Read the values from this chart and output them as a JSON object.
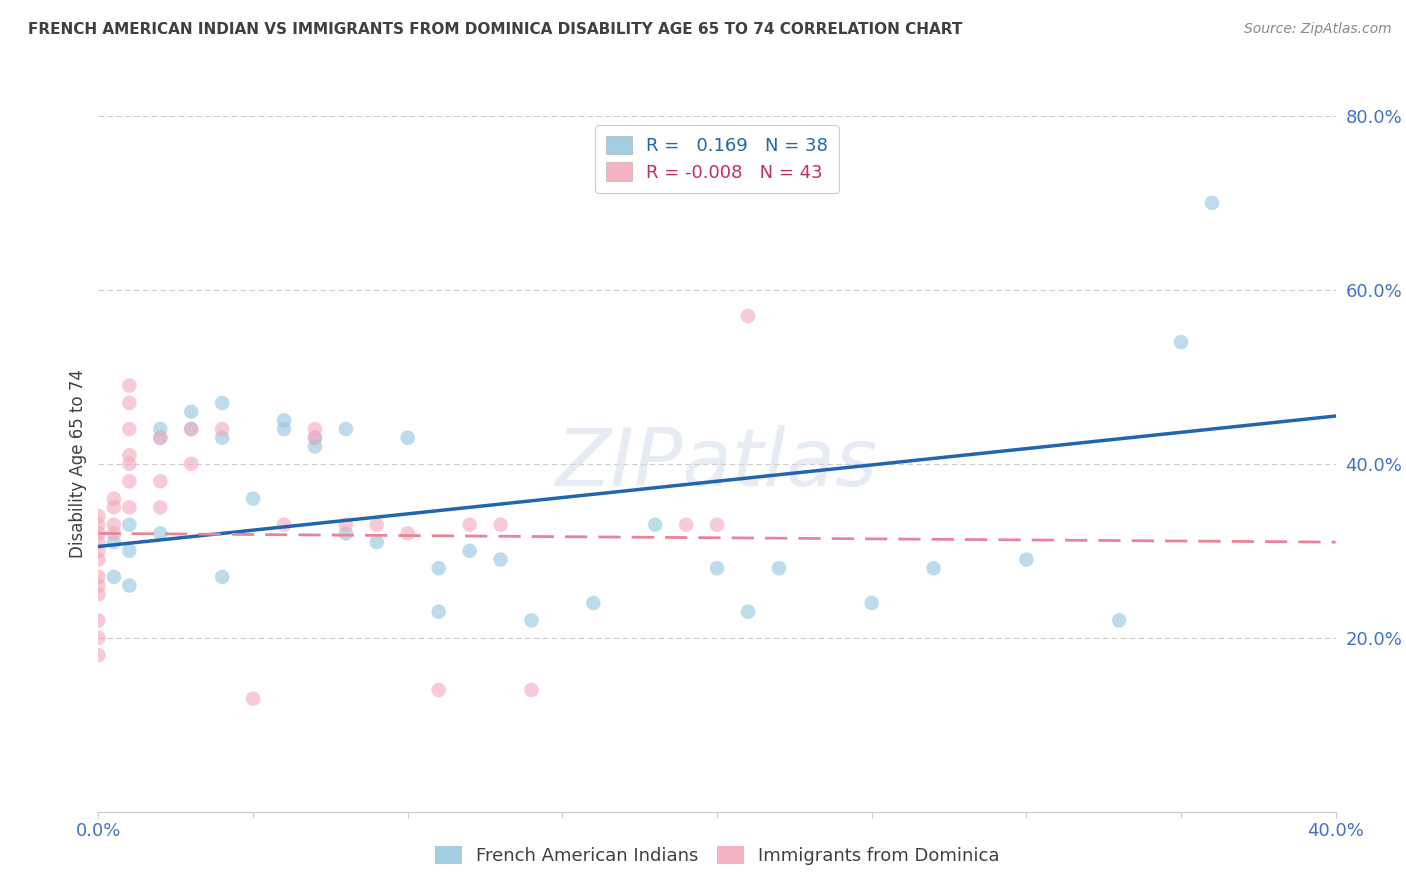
{
  "title": "FRENCH AMERICAN INDIAN VS IMMIGRANTS FROM DOMINICA DISABILITY AGE 65 TO 74 CORRELATION CHART",
  "source": "Source: ZipAtlas.com",
  "ylabel": "Disability Age 65 to 74",
  "xlim": [
    0.0,
    0.4
  ],
  "ylim": [
    0.0,
    0.8
  ],
  "xticks": [
    0.0,
    0.05,
    0.1,
    0.15,
    0.2,
    0.25,
    0.3,
    0.35,
    0.4
  ],
  "yticks": [
    0.0,
    0.2,
    0.4,
    0.6,
    0.8
  ],
  "xtick_labels": [
    "0.0%",
    "",
    "",
    "",
    "",
    "",
    "",
    "",
    "40.0%"
  ],
  "ytick_labels": [
    "",
    "20.0%",
    "40.0%",
    "60.0%",
    "80.0%"
  ],
  "blue_R": 0.169,
  "blue_N": 38,
  "pink_R": -0.008,
  "pink_N": 43,
  "blue_color": "#92c5de",
  "pink_color": "#f4a7b9",
  "blue_line_color": "#2166ac",
  "pink_line_color": "#e8849a",
  "grid_color": "#cccccc",
  "title_color": "#404040",
  "axis_label_color": "#4472c4",
  "watermark": "ZIPatlas",
  "legend_label_blue": "French American Indians",
  "legend_label_pink": "Immigrants from Dominica",
  "blue_scatter_x": [
    0.005,
    0.005,
    0.01,
    0.01,
    0.01,
    0.02,
    0.02,
    0.02,
    0.03,
    0.03,
    0.04,
    0.04,
    0.04,
    0.05,
    0.06,
    0.06,
    0.07,
    0.07,
    0.08,
    0.08,
    0.09,
    0.1,
    0.11,
    0.11,
    0.12,
    0.13,
    0.14,
    0.16,
    0.18,
    0.2,
    0.21,
    0.22,
    0.25,
    0.27,
    0.3,
    0.33,
    0.35,
    0.36
  ],
  "blue_scatter_y": [
    0.31,
    0.27,
    0.33,
    0.3,
    0.26,
    0.44,
    0.43,
    0.32,
    0.46,
    0.44,
    0.47,
    0.43,
    0.27,
    0.36,
    0.45,
    0.44,
    0.42,
    0.43,
    0.44,
    0.32,
    0.31,
    0.43,
    0.28,
    0.23,
    0.3,
    0.29,
    0.22,
    0.24,
    0.33,
    0.28,
    0.23,
    0.28,
    0.24,
    0.28,
    0.29,
    0.22,
    0.54,
    0.7
  ],
  "pink_scatter_x": [
    0.0,
    0.0,
    0.0,
    0.0,
    0.0,
    0.0,
    0.0,
    0.0,
    0.0,
    0.0,
    0.0,
    0.0,
    0.005,
    0.005,
    0.005,
    0.005,
    0.01,
    0.01,
    0.01,
    0.01,
    0.01,
    0.01,
    0.01,
    0.02,
    0.02,
    0.02,
    0.03,
    0.03,
    0.04,
    0.05,
    0.06,
    0.07,
    0.07,
    0.08,
    0.09,
    0.1,
    0.11,
    0.12,
    0.13,
    0.14,
    0.19,
    0.2,
    0.21
  ],
  "pink_scatter_y": [
    0.34,
    0.33,
    0.32,
    0.31,
    0.3,
    0.29,
    0.27,
    0.26,
    0.25,
    0.22,
    0.2,
    0.18,
    0.36,
    0.35,
    0.33,
    0.32,
    0.49,
    0.47,
    0.44,
    0.41,
    0.4,
    0.38,
    0.35,
    0.43,
    0.38,
    0.35,
    0.44,
    0.4,
    0.44,
    0.13,
    0.33,
    0.44,
    0.43,
    0.33,
    0.33,
    0.32,
    0.14,
    0.33,
    0.33,
    0.14,
    0.33,
    0.33,
    0.57
  ],
  "bg_color": "#ffffff",
  "scatter_alpha": 0.6,
  "scatter_size": 110
}
